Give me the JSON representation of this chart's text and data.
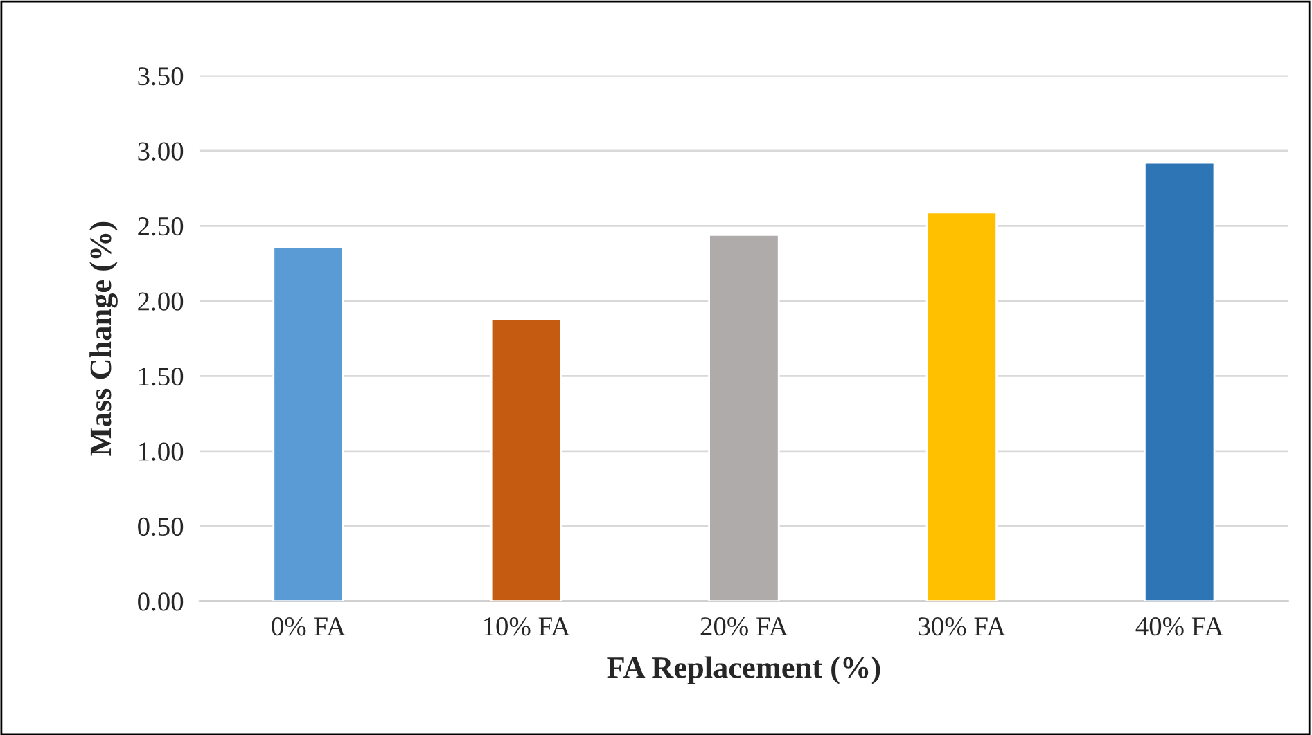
{
  "chart_data": {
    "type": "bar",
    "xlabel": "FA Replacement (%)",
    "ylabel": "Mass Change (%)",
    "categories": [
      "0% FA",
      "10% FA",
      "20% FA",
      "30% FA",
      "40% FA"
    ],
    "values": [
      2.36,
      1.88,
      2.44,
      2.59,
      2.92
    ],
    "colors": [
      "#5b9bd5",
      "#c55a11",
      "#afabab",
      "#ffc000",
      "#2e75b6"
    ],
    "ylim": [
      0,
      3.5
    ],
    "yticks": [
      {
        "value": 0,
        "label": "0.00"
      },
      {
        "value": 0.5,
        "label": "0.50"
      },
      {
        "value": 1,
        "label": "1.00"
      },
      {
        "value": 1.5,
        "label": "1.50"
      },
      {
        "value": 2,
        "label": "2.00"
      },
      {
        "value": 2.5,
        "label": "2.50"
      },
      {
        "value": 3,
        "label": "3.00"
      },
      {
        "value": 3.5,
        "label": "3.50"
      }
    ],
    "grid": "y",
    "legend": false
  }
}
